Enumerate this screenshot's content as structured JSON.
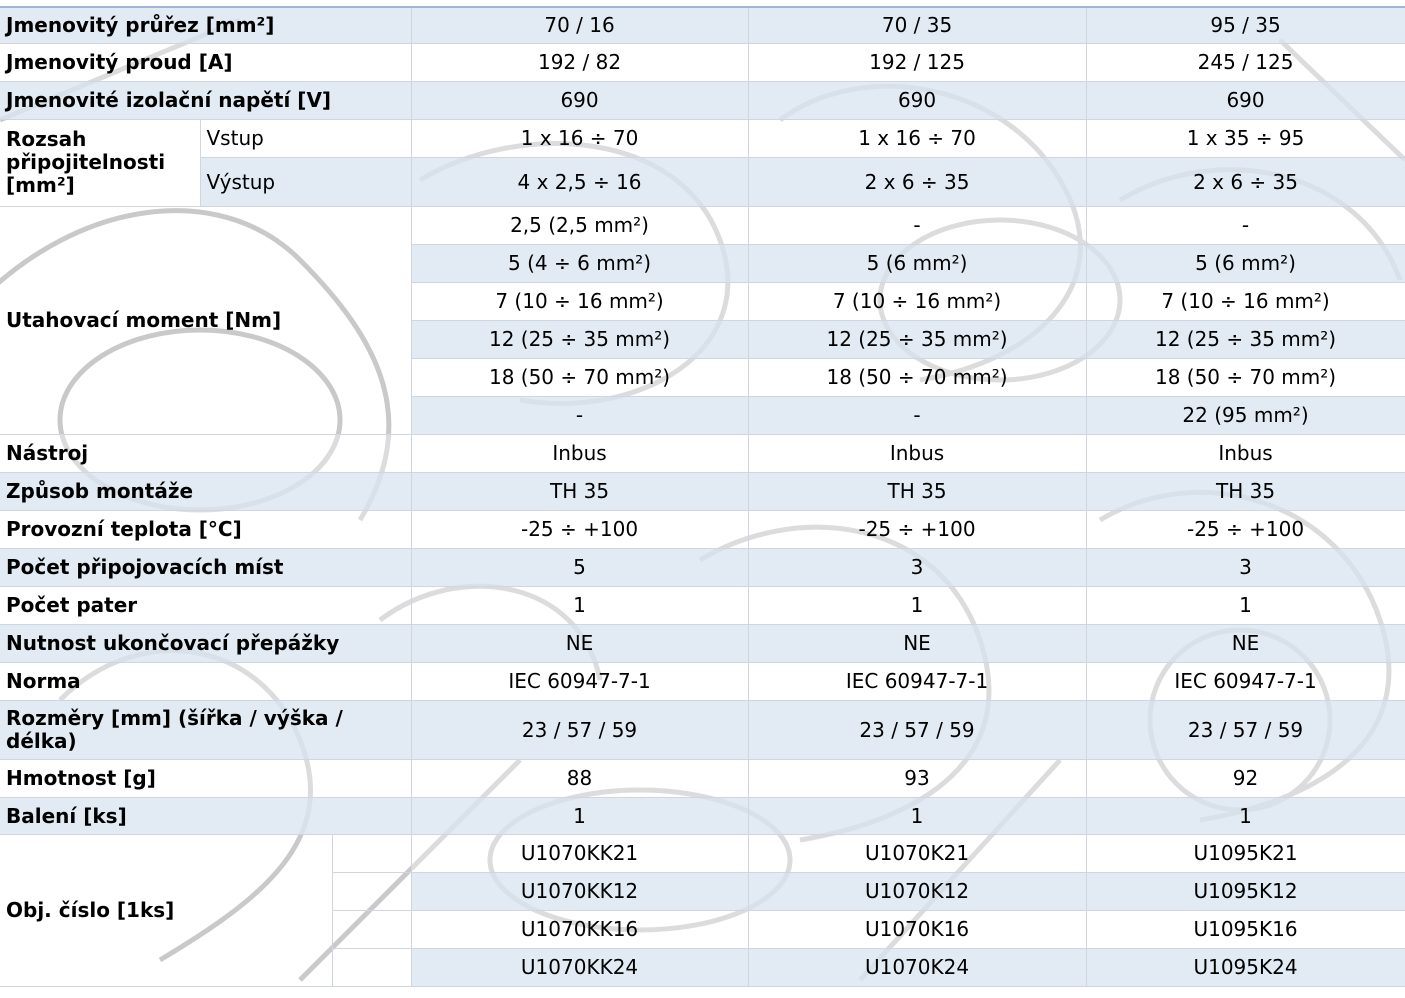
{
  "rows": {
    "prurez": {
      "label": "Jmenovitý průřez [mm²]",
      "v1": "70 / 16",
      "v2": "70 / 35",
      "v3": "95 / 35"
    },
    "proud": {
      "label": "Jmenovitý proud [A]",
      "v1": "192 / 82",
      "v2": "192 / 125",
      "v3": "245 / 125"
    },
    "napeti": {
      "label": "Jmenovité izolační napětí [V]",
      "v1": "690",
      "v2": "690",
      "v3": "690"
    },
    "rozsah": {
      "label": "Rozsah připojitelnosti [mm²]",
      "vstup": {
        "label": "Vstup",
        "v1": "1 x 16 ÷ 70",
        "v2": "1 x 16 ÷ 70",
        "v3": "1 x 35 ÷ 95"
      },
      "vystup": {
        "label": "Výstup",
        "v1": "4 x 2,5 ÷ 16",
        "v2": "2 x 6 ÷ 35",
        "v3": "2 x 6 ÷ 35"
      }
    },
    "moment": {
      "label": "Utahovací moment [Nm]",
      "lines": [
        {
          "v1": "2,5 (2,5 mm²)",
          "v2": "-",
          "v3": "-"
        },
        {
          "v1": "5 (4 ÷ 6 mm²)",
          "v2": "5 (6 mm²)",
          "v3": "5 (6 mm²)"
        },
        {
          "v1": "7 (10 ÷ 16 mm²)",
          "v2": "7 (10 ÷ 16 mm²)",
          "v3": "7 (10 ÷ 16 mm²)"
        },
        {
          "v1": "12 (25 ÷ 35 mm²)",
          "v2": "12 (25 ÷ 35 mm²)",
          "v3": "12 (25 ÷ 35 mm²)"
        },
        {
          "v1": "18 (50 ÷ 70 mm²)",
          "v2": "18 (50 ÷ 70 mm²)",
          "v3": "18 (50 ÷ 70 mm²)"
        },
        {
          "v1": "-",
          "v2": "-",
          "v3": "22 (95 mm²)"
        }
      ]
    },
    "nastroj": {
      "label": "Nástroj",
      "v1": "Inbus",
      "v2": "Inbus",
      "v3": "Inbus"
    },
    "montaz": {
      "label": "Způsob montáže",
      "v1": "TH 35",
      "v2": "TH 35",
      "v3": "TH 35"
    },
    "teplota": {
      "label": "Provozní teplota [°C]",
      "v1": "-25 ÷ +100",
      "v2": "-25 ÷ +100",
      "v3": "-25 ÷ +100"
    },
    "mista": {
      "label": "Počet připojovacích míst",
      "v1": "5",
      "v2": "3",
      "v3": "3"
    },
    "pater": {
      "label": "Počet pater",
      "v1": "1",
      "v2": "1",
      "v3": "1"
    },
    "prepazka": {
      "label": "Nutnost ukončovací přepážky",
      "v1": "NE",
      "v2": "NE",
      "v3": "NE"
    },
    "norma": {
      "label": "Norma",
      "v1": "IEC 60947-7-1",
      "v2": "IEC 60947-7-1",
      "v3": "IEC 60947-7-1"
    },
    "rozmery": {
      "label": "Rozměry [mm] (šířka / výška / délka)",
      "v1": "23 / 57 / 59",
      "v2": "23 / 57 / 59",
      "v3": "23 / 57 / 59"
    },
    "hmotnost": {
      "label": "Hmotnost [g]",
      "v1": "88",
      "v2": "93",
      "v3": "92"
    },
    "baleni": {
      "label": "Balení [ks]",
      "v1": "1",
      "v2": "1",
      "v3": "1"
    },
    "obj": {
      "label": "Obj. číslo [1ks]",
      "variants": [
        {
          "color": "#a6a6a6",
          "v1": "U1070KK21",
          "v2": "U1070K21",
          "v3": "U1095K21"
        },
        {
          "color": "#2e74b5",
          "v1": "U1070KK12",
          "v2": "U1070K12",
          "v3": "U1095K12"
        },
        {
          "color": "#ff0000",
          "v1": "U1070KK16",
          "v2": "U1070K16",
          "v3": "U1095K16"
        },
        {
          "color": "#00b050",
          "color2": "#ffff00",
          "v1": "U1070KK24",
          "v2": "U1070K24",
          "v3": "U1095K24"
        }
      ]
    }
  }
}
